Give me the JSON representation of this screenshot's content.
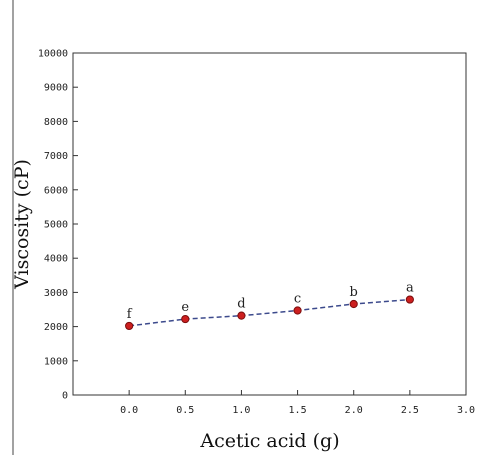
{
  "chart_data": {
    "type": "line",
    "title": "",
    "xlabel": "Acetic acid (g)",
    "ylabel": "Viscosity (cP)",
    "xlim": [
      -0.5,
      3.0
    ],
    "ylim": [
      0,
      10000
    ],
    "x_ticks": [
      "0.0",
      "0.5",
      "1.0",
      "1.5",
      "2.0",
      "2.5",
      "3.0"
    ],
    "y_ticks": [
      "0",
      "1000",
      "2000",
      "3000",
      "4000",
      "5000",
      "6000",
      "7000",
      "8000",
      "9000",
      "10000"
    ],
    "grid": false,
    "legend": "none",
    "series": [
      {
        "x": [
          0.0,
          0.5,
          1.0,
          1.5,
          2.0,
          2.5
        ],
        "y": [
          2020,
          2220,
          2320,
          2470,
          2660,
          2790
        ],
        "labels": [
          "f",
          "e",
          "d",
          "c",
          "b",
          "a"
        ],
        "marker_color": "#cc1f1f",
        "marker_edge_color": "#7a0d0d",
        "line_color": "#3c4a8c",
        "line_style": "dashed"
      }
    ]
  }
}
